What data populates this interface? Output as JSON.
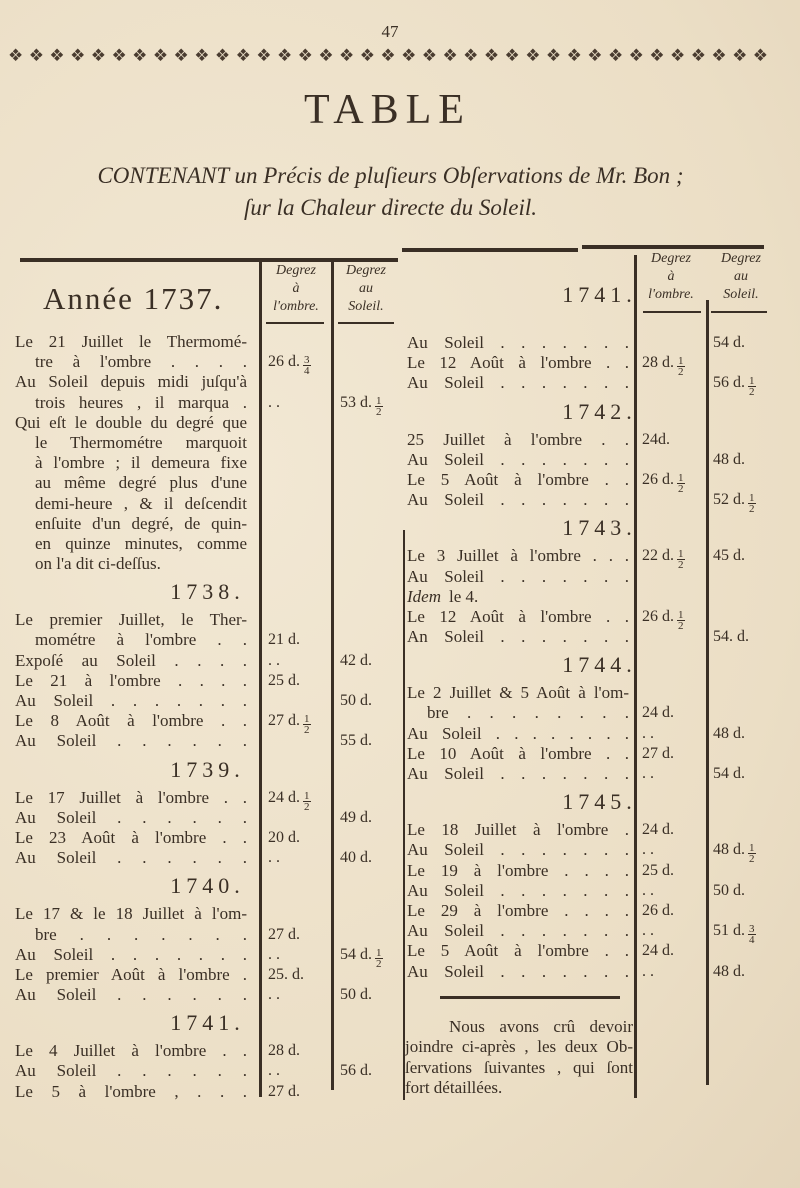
{
  "page_number": "47",
  "ornament_icon": "fleuron-icon",
  "ornament_glyph": "❖",
  "title": "TABLE",
  "subtitle": {
    "line1": "CONTENANT un Précis de pluſieurs Obſervations de Mr. Bon ;",
    "line2": "ſur la Chaleur directe du Soleil."
  },
  "columns": {
    "shade": [
      "Degrez",
      "à",
      "l'ombre."
    ],
    "sun": [
      "Degrez",
      "au",
      "Soleil."
    ]
  },
  "left": {
    "sections": [
      {
        "heading": "Année 1737.",
        "rows": [
          {
            "text": "Le 21 Juillet le Thermomé-"
          },
          {
            "text": "tre à l'ombre . . . .",
            "indent": true,
            "shade": "26 d.",
            "shade_frac": [
              "3",
              "4"
            ]
          },
          {
            "text": "Au Soleil depuis midi juſqu'à"
          },
          {
            "text": "trois heures , il marqua .",
            "indent": true,
            "shade": ". .",
            "sun": "53 d.",
            "sun_frac": [
              "1",
              "2"
            ]
          },
          {
            "text": "Qui eſt le double du degré que"
          },
          {
            "text": "le Thermométre marquoit",
            "indent": true
          },
          {
            "text": "à l'ombre ; il demeura fixe",
            "indent": true
          },
          {
            "text": "au même degré plus d'une",
            "indent": true
          },
          {
            "text": "demi-heure , & il deſcendit",
            "indent": true
          },
          {
            "text": "enſuite d'un degré, de quin-",
            "indent": true
          },
          {
            "text": "en quinze minutes, comme",
            "indent": true
          },
          {
            "text": "on l'a dit ci-deſſus.",
            "indent": true
          }
        ]
      },
      {
        "heading": "1738.",
        "rows": [
          {
            "text": "Le premier Juillet, le Ther-"
          },
          {
            "text": "mométre à l'ombre . .",
            "indent": true,
            "shade": "21 d."
          },
          {
            "text": "Expoſé au Soleil . . . .",
            "shade": ". .",
            "sun": "42 d."
          },
          {
            "text": "Le 21 à l'ombre . . . .",
            "shade": "25 d."
          },
          {
            "text": "Au Soleil . . . . . . .",
            "sun": "50 d."
          },
          {
            "text": "Le 8 Août à l'ombre . .",
            "shade": "27 d.",
            "shade_frac": [
              "1",
              "2"
            ]
          },
          {
            "text": "Au Soleil . . . . . .",
            "sun": "55 d."
          }
        ]
      },
      {
        "heading": "1739.",
        "rows": [
          {
            "text": "Le 17 Juillet à l'ombre . .",
            "shade": "24 d.",
            "shade_frac": [
              "1",
              "2"
            ]
          },
          {
            "text": "Au Soleil . . . . . .",
            "sun": "49 d."
          },
          {
            "text": "Le 23 Août à l'ombre . .",
            "shade": "20 d."
          },
          {
            "text": "Au Soleil . . . . . .",
            "shade": ". .",
            "sun": "40 d."
          }
        ]
      },
      {
        "heading": "1740.",
        "rows": [
          {
            "text": "Le 17 & le 18 Juillet à l'om-"
          },
          {
            "text": "bre . . . . . . .",
            "indent": true,
            "shade": "27 d."
          },
          {
            "text": "Au Soleil . . . . . . .",
            "shade": ". .",
            "sun": "54 d.",
            "sun_frac": [
              "1",
              "2"
            ]
          },
          {
            "text": "Le premier Août à l'ombre .",
            "shade": "25. d."
          },
          {
            "text": "Au Soleil . . . . . .",
            "shade": ". .",
            "sun": "50 d."
          }
        ]
      },
      {
        "heading": "1741.",
        "rows": [
          {
            "text": "Le 4 Juillet à l'ombre . .",
            "shade": "28 d."
          },
          {
            "text": "Au Soleil . . . . . .",
            "shade": ". .",
            "sun": "56 d."
          },
          {
            "text": "Le 5 à l'ombre , . . .",
            "shade": "27 d."
          }
        ]
      }
    ]
  },
  "right": {
    "sections": [
      {
        "heading": "1741.",
        "rows": [
          {
            "text": "Au Soleil . . . . . . .",
            "sun": "54 d."
          },
          {
            "text": "Le 12 Août à l'ombre . .",
            "shade": "28 d.",
            "shade_frac": [
              "1",
              "2"
            ]
          },
          {
            "text": "Au Soleil . . . . . . .",
            "sun": "56 d.",
            "sun_frac": [
              "1",
              "2"
            ]
          }
        ]
      },
      {
        "heading": "1742.",
        "rows": [
          {
            "text": "25 Juillet à l'ombre . .",
            "shade": "24d."
          },
          {
            "text": "Au Soleil . . . . . . .",
            "sun": "48 d."
          },
          {
            "text": "Le 5 Août à l'ombre . .",
            "shade": "26 d.",
            "shade_frac": [
              "1",
              "2"
            ]
          },
          {
            "text": "Au Soleil . . . . . . .",
            "sun": "52 d.",
            "sun_frac": [
              "1",
              "2"
            ]
          }
        ]
      },
      {
        "heading": "1743.",
        "rows": [
          {
            "text": "Le 3 Juillet à l'ombre . . .",
            "shade": "22 d.",
            "shade_frac": [
              "1",
              "2"
            ],
            "sun": "45 d."
          },
          {
            "text": "Au Soleil . . . . . . ."
          },
          {
            "italic": "Idem",
            "text": "le 4."
          },
          {
            "text": "Le 12 Août à l'ombre . .",
            "shade": "26 d.",
            "shade_frac": [
              "1",
              "2"
            ]
          },
          {
            "text": "An Soleil . . . . . . .",
            "sun": "54. d."
          }
        ]
      },
      {
        "heading": "1744.",
        "rows": [
          {
            "text": "Le 2 Juillet & 5 Août à l'om-"
          },
          {
            "text": "bre . . . . . . . .",
            "indent": true,
            "shade": "24 d."
          },
          {
            "text": "Au Soleil . . . . . . . .",
            "shade": ". .",
            "sun": "48 d."
          },
          {
            "text": "Le 10 Août à l'ombre . .",
            "shade": "27 d."
          },
          {
            "text": "Au Soleil . . . . . . .",
            "shade": ". .",
            "sun": "54 d."
          }
        ]
      },
      {
        "heading": "1745.",
        "rows": [
          {
            "text": "Le 18 Juillet à l'ombre .",
            "shade": "24 d."
          },
          {
            "text": "Au Soleil . . . . . . .",
            "shade": ". .",
            "sun": "48 d.",
            "sun_frac": [
              "1",
              "2"
            ]
          },
          {
            "text": "Le 19 à l'ombre . . . .",
            "shade": "25 d."
          },
          {
            "text": "Au Soleil . . . . . . .",
            "shade": ". .",
            "sun": "50 d."
          },
          {
            "text": "Le 29 à l'ombre . . . .",
            "shade": "26 d."
          },
          {
            "text": "Au Soleil . . . . . . .",
            "shade": ". .",
            "sun": "51 d.",
            "sun_frac": [
              "3",
              "4"
            ]
          },
          {
            "text": "Le 5 Août à l'ombre . .",
            "shade": "24 d."
          },
          {
            "text": "Au Soleil . . . . . . .",
            "shade": ". .",
            "sun": "48 d."
          }
        ]
      }
    ]
  },
  "note": [
    "Nous avons crû devoir",
    "joindre ci-après , les deux Ob-",
    "ſervations ſuivantes , qui ſont",
    "fort détaillées."
  ]
}
